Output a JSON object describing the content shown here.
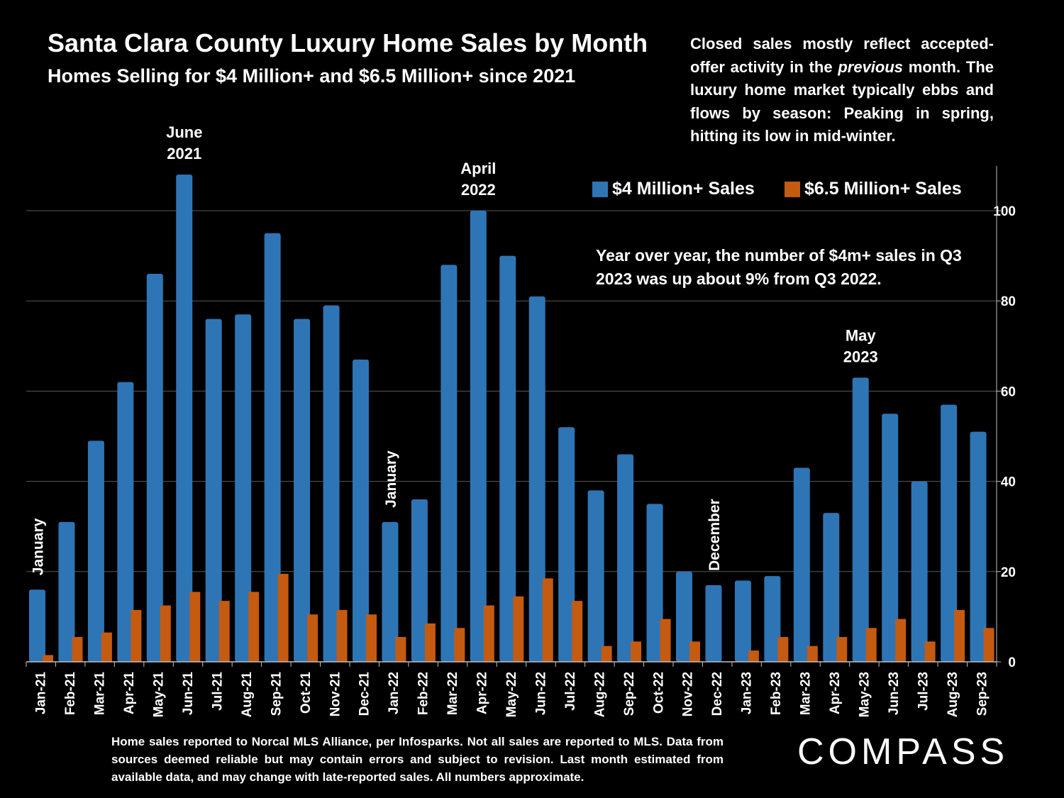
{
  "chart_data": {
    "type": "bar",
    "title": "Santa Clara County Luxury Home Sales by Month",
    "subtitle": "Homes Selling for $4 Million+ and $6.5 Million+ since 2021",
    "categories": [
      "Jan-21",
      "Feb-21",
      "Mar-21",
      "Apr-21",
      "May-21",
      "Jun-21",
      "Jul-21",
      "Aug-21",
      "Sep-21",
      "Oct-21",
      "Nov-21",
      "Dec-21",
      "Jan-22",
      "Feb-22",
      "Mar-22",
      "Apr-22",
      "May-22",
      "Jun-22",
      "Jul-22",
      "Aug-22",
      "Sep-22",
      "Oct-22",
      "Nov-22",
      "Dec-22",
      "Jan-23",
      "Feb-23",
      "Mar-23",
      "Apr-23",
      "May-23",
      "Jun-23",
      "Jul-23",
      "Aug-23",
      "Sep-23"
    ],
    "series": [
      {
        "name": "$4 Million+ Sales",
        "color": "#2e75b6",
        "values": [
          16,
          31,
          49,
          62,
          86,
          108,
          76,
          77,
          95,
          76,
          79,
          67,
          31,
          36,
          88,
          100,
          90,
          81,
          52,
          38,
          46,
          35,
          20,
          17,
          18,
          19,
          43,
          33,
          63,
          55,
          40,
          57,
          51
        ]
      },
      {
        "name": "$6.5 Million+ Sales",
        "color": "#c55a11",
        "values": [
          1.5,
          5.5,
          6.5,
          11.5,
          12.5,
          15.5,
          13.5,
          15.5,
          19.5,
          10.5,
          11.5,
          10.5,
          5.5,
          8.5,
          7.5,
          12.5,
          14.5,
          18.5,
          13.5,
          3.5,
          4.5,
          9.5,
          4.5,
          0,
          2.5,
          5.5,
          3.5,
          5.5,
          7.5,
          9.5,
          4.5,
          11.5,
          7.5
        ]
      }
    ],
    "y_ticks": [
      "0",
      "20",
      "40",
      "60",
      "80",
      "100"
    ],
    "ylim": [
      0,
      110
    ],
    "y_axis_side": "right",
    "grid": true,
    "legend_position": "top-right",
    "annotations": [
      {
        "text": "June\n2021",
        "category": "Jun-21"
      },
      {
        "text": "April\n2022",
        "category": "Apr-22"
      },
      {
        "text": "May\n2023",
        "category": "May-23"
      },
      {
        "text": "January",
        "category": "Jan-21",
        "rotated": true
      },
      {
        "text": "January",
        "category": "Jan-22",
        "rotated": true
      },
      {
        "text": "December",
        "category": "Dec-22",
        "rotated": true
      }
    ]
  },
  "note": {
    "before": "Closed sales mostly reflect accepted-offer activity in the ",
    "emph": "previous",
    "after": " month. The luxury home market typically ebbs and flows by season: Peaking in spring, hitting its low in mid-winter."
  },
  "yoy_note": "Year over year, the number of $4m+ sales in Q3 2023 was up about 9% from Q3 2022.",
  "footnote": "Home sales reported to Norcal MLS Alliance, per Infosparks. Not all sales are reported to MLS. Data from sources deemed reliable but may contain errors and subject to revision.  Last month estimated from available data, and may change with late-reported sales. All numbers approximate.",
  "brand": "COMPASS"
}
